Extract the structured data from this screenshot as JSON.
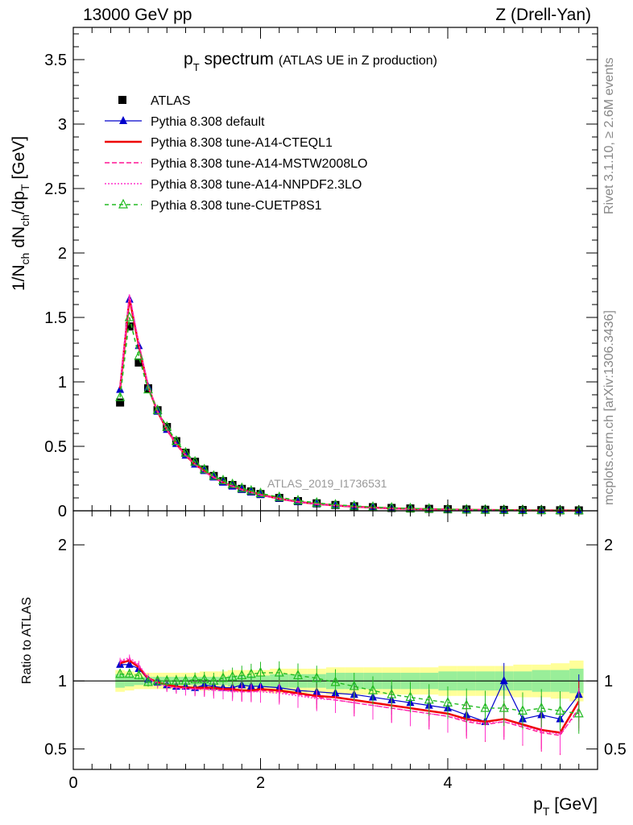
{
  "header": {
    "left": "13000 GeV pp",
    "right": "Z (Drell-Yan)"
  },
  "side_labels": {
    "rivet": "Rivet 3.1.10, ≥ 2.6M events",
    "mcplots": "mcplots.cern.ch [arXiv:1306.3436]"
  },
  "chart_data": [
    {
      "type": "line",
      "title_main": "p",
      "title_sub": "T",
      "title_rest": " spectrum",
      "title_paren": "(ATLAS UE in Z production)",
      "watermark": "ATLAS_2019_I1736531",
      "ylabel": "1/N_ch dN_ch/dp_T [GeV]",
      "xlim": [
        0,
        5.6
      ],
      "ylim": [
        0,
        3.75
      ],
      "yticks": [
        "0",
        "0.5",
        "1",
        "1.5",
        "2",
        "2.5",
        "3",
        "3.5"
      ],
      "x": [
        0.5,
        0.6,
        0.7,
        0.8,
        0.9,
        1.0,
        1.1,
        1.2,
        1.3,
        1.4,
        1.5,
        1.6,
        1.7,
        1.8,
        1.9,
        2.0,
        2.2,
        2.4,
        2.6,
        2.8,
        3.0,
        3.2,
        3.4,
        3.6,
        3.8,
        4.0,
        4.2,
        4.4,
        4.6,
        4.8,
        5.0,
        5.2,
        5.4
      ],
      "series": [
        {
          "name": "ATLAS",
          "color": "#000000",
          "marker": "square",
          "values": [
            0.84,
            1.43,
            1.15,
            0.95,
            0.78,
            0.65,
            0.54,
            0.45,
            0.38,
            0.32,
            0.27,
            0.23,
            0.2,
            0.17,
            0.15,
            0.13,
            0.1,
            0.075,
            0.058,
            0.045,
            0.035,
            0.028,
            0.022,
            0.018,
            0.015,
            0.012,
            0.01,
            0.008,
            0.007,
            0.006,
            0.005,
            0.004,
            0.003
          ]
        },
        {
          "name": "Pythia 8.308 default",
          "color": "#0000cc",
          "marker": "triangle",
          "values": [
            0.94,
            1.64,
            1.28,
            0.96,
            0.77,
            0.63,
            0.52,
            0.43,
            0.36,
            0.31,
            0.26,
            0.22,
            0.19,
            0.165,
            0.145,
            0.125,
            0.096,
            0.071,
            0.055,
            0.042,
            0.033,
            0.026,
            0.02,
            0.016,
            0.013,
            0.01,
            0.008,
            0.007,
            0.006,
            0.005,
            0.004,
            0.003,
            0.002
          ]
        },
        {
          "name": "Pythia 8.308 tune-A14-CTEQL1",
          "color": "#ee0000",
          "marker": "none",
          "values": [
            0.95,
            1.65,
            1.28,
            0.96,
            0.77,
            0.63,
            0.52,
            0.43,
            0.36,
            0.31,
            0.26,
            0.22,
            0.19,
            0.165,
            0.145,
            0.125,
            0.094,
            0.07,
            0.053,
            0.041,
            0.032,
            0.025,
            0.019,
            0.015,
            0.012,
            0.009,
            0.007,
            0.006,
            0.005,
            0.004,
            0.003,
            0.002,
            0.002
          ]
        },
        {
          "name": "Pythia 8.308 tune-A14-MSTW2008LO",
          "color": "#ff1493",
          "marker": "none",
          "values": [
            0.96,
            1.67,
            1.29,
            0.97,
            0.77,
            0.63,
            0.52,
            0.43,
            0.36,
            0.3,
            0.26,
            0.22,
            0.19,
            0.163,
            0.143,
            0.123,
            0.093,
            0.069,
            0.052,
            0.04,
            0.031,
            0.024,
            0.018,
            0.014,
            0.011,
            0.009,
            0.007,
            0.006,
            0.005,
            0.004,
            0.003,
            0.002,
            0.002
          ]
        },
        {
          "name": "Pythia 8.308 tune-A14-NNPDF2.3LO",
          "color": "#ff33cc",
          "marker": "none",
          "values": [
            0.97,
            1.68,
            1.3,
            0.97,
            0.77,
            0.63,
            0.51,
            0.43,
            0.36,
            0.3,
            0.26,
            0.22,
            0.19,
            0.163,
            0.142,
            0.122,
            0.093,
            0.069,
            0.052,
            0.04,
            0.031,
            0.024,
            0.018,
            0.014,
            0.011,
            0.009,
            0.007,
            0.006,
            0.005,
            0.004,
            0.003,
            0.002,
            0.002
          ]
        },
        {
          "name": "Pythia 8.308 tune-CUETP8S1",
          "color": "#22bb22",
          "marker": "triangle-open",
          "values": [
            0.88,
            1.5,
            1.2,
            0.94,
            0.78,
            0.65,
            0.54,
            0.45,
            0.38,
            0.32,
            0.27,
            0.235,
            0.205,
            0.175,
            0.155,
            0.135,
            0.105,
            0.079,
            0.061,
            0.047,
            0.037,
            0.029,
            0.023,
            0.018,
            0.015,
            0.012,
            0.009,
            0.007,
            0.006,
            0.005,
            0.004,
            0.003,
            0.002
          ]
        }
      ]
    },
    {
      "type": "line",
      "ylabel": "Ratio to ATLAS",
      "xlabel_main": "p",
      "xlabel_sub": "T",
      "xlabel_rest": " [GeV]",
      "xlim": [
        0,
        5.6
      ],
      "ylim": [
        0.35,
        2.25
      ],
      "xticks": [
        "0",
        "2",
        "4"
      ],
      "yticks": [
        "0.5",
        "1",
        "2"
      ],
      "band_inner": [
        0.05,
        0.04,
        0.03,
        0.03,
        0.03,
        0.03,
        0.03,
        0.03,
        0.03,
        0.03,
        0.03,
        0.03,
        0.04,
        0.04,
        0.04,
        0.04,
        0.05,
        0.05,
        0.05,
        0.06,
        0.06,
        0.06,
        0.06,
        0.06,
        0.06,
        0.07,
        0.07,
        0.07,
        0.07,
        0.07,
        0.08,
        0.08,
        0.09
      ],
      "band_outer": [
        0.08,
        0.07,
        0.06,
        0.06,
        0.06,
        0.06,
        0.06,
        0.06,
        0.06,
        0.07,
        0.07,
        0.07,
        0.08,
        0.08,
        0.08,
        0.08,
        0.09,
        0.09,
        0.09,
        0.1,
        0.1,
        0.1,
        0.1,
        0.1,
        0.1,
        0.11,
        0.11,
        0.11,
        0.11,
        0.12,
        0.12,
        0.13,
        0.15
      ],
      "series": [
        {
          "name": "Pythia 8.308 default",
          "color": "#0000cc",
          "values": [
            1.12,
            1.12,
            1.09,
            1.01,
            0.99,
            0.97,
            0.96,
            0.96,
            0.95,
            0.97,
            0.96,
            0.95,
            0.95,
            0.97,
            0.96,
            0.96,
            0.95,
            0.93,
            0.92,
            0.91,
            0.9,
            0.88,
            0.86,
            0.84,
            0.82,
            0.8,
            0.75,
            0.7,
            1.0,
            0.72,
            0.75,
            0.72,
            0.9
          ]
        },
        {
          "name": "Pythia 8.308 tune-A14-CTEQL1",
          "color": "#ee0000",
          "values": [
            1.13,
            1.15,
            1.1,
            1.02,
            0.99,
            0.97,
            0.96,
            0.95,
            0.95,
            0.95,
            0.95,
            0.94,
            0.94,
            0.93,
            0.93,
            0.94,
            0.93,
            0.91,
            0.89,
            0.88,
            0.86,
            0.84,
            0.82,
            0.8,
            0.78,
            0.76,
            0.72,
            0.7,
            0.72,
            0.68,
            0.64,
            0.62,
            0.85
          ]
        },
        {
          "name": "Pythia 8.308 tune-A14-MSTW2008LO",
          "color": "#ff1493",
          "values": [
            1.14,
            1.16,
            1.11,
            1.02,
            0.99,
            0.96,
            0.95,
            0.95,
            0.94,
            0.94,
            0.94,
            0.93,
            0.93,
            0.92,
            0.92,
            0.93,
            0.92,
            0.9,
            0.88,
            0.86,
            0.84,
            0.82,
            0.8,
            0.78,
            0.76,
            0.74,
            0.7,
            0.68,
            0.7,
            0.66,
            0.62,
            0.6,
            0.8
          ]
        },
        {
          "name": "Pythia 8.308 tune-A14-NNPDF2.3LO",
          "color": "#ff33cc",
          "values": [
            1.15,
            1.17,
            1.12,
            1.02,
            0.98,
            0.96,
            0.95,
            0.94,
            0.94,
            0.94,
            0.93,
            0.93,
            0.92,
            0.92,
            0.92,
            0.92,
            0.91,
            0.89,
            0.87,
            0.86,
            0.84,
            0.82,
            0.8,
            0.78,
            0.76,
            0.74,
            0.71,
            0.69,
            0.7,
            0.67,
            0.63,
            0.61,
            0.78
          ]
        },
        {
          "name": "Pythia 8.308 tune-CUETP8S1",
          "color": "#22bb22",
          "values": [
            1.05,
            1.05,
            1.04,
            0.99,
            1.0,
            1.0,
            1.0,
            1.0,
            1.01,
            1.01,
            1.0,
            1.02,
            1.03,
            1.04,
            1.05,
            1.06,
            1.06,
            1.04,
            1.02,
            0.99,
            0.96,
            0.93,
            0.9,
            0.88,
            0.86,
            0.84,
            0.82,
            0.8,
            0.8,
            0.78,
            0.8,
            0.78,
            0.76
          ]
        }
      ]
    }
  ]
}
